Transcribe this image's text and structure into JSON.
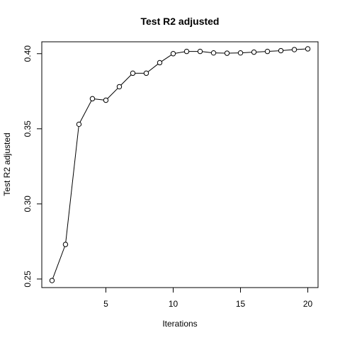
{
  "chart_data": {
    "type": "line",
    "title": "Test R2 adjusted",
    "xlabel": "Iterations",
    "ylabel": "Test R2 adjusted",
    "xlim": [
      0.24,
      20.76
    ],
    "ylim": [
      0.2443,
      0.4079
    ],
    "x_ticks": [
      5,
      10,
      15,
      20
    ],
    "y_ticks": [
      0.25,
      0.3,
      0.35,
      0.4
    ],
    "x_tick_labels": [
      "5",
      "10",
      "15",
      "20"
    ],
    "y_tick_labels": [
      "0.25",
      "0.30",
      "0.35",
      "0.40"
    ],
    "grid": false,
    "markers": "open-circle",
    "x": [
      1,
      2,
      3,
      4,
      5,
      6,
      7,
      8,
      9,
      10,
      11,
      12,
      13,
      14,
      15,
      16,
      17,
      18,
      19,
      20
    ],
    "y": [
      0.249,
      0.273,
      0.353,
      0.37,
      0.369,
      0.378,
      0.387,
      0.387,
      0.394,
      0.4,
      0.4015,
      0.4015,
      0.4005,
      0.4003,
      0.4005,
      0.401,
      0.4015,
      0.402,
      0.4027,
      0.4032
    ]
  }
}
